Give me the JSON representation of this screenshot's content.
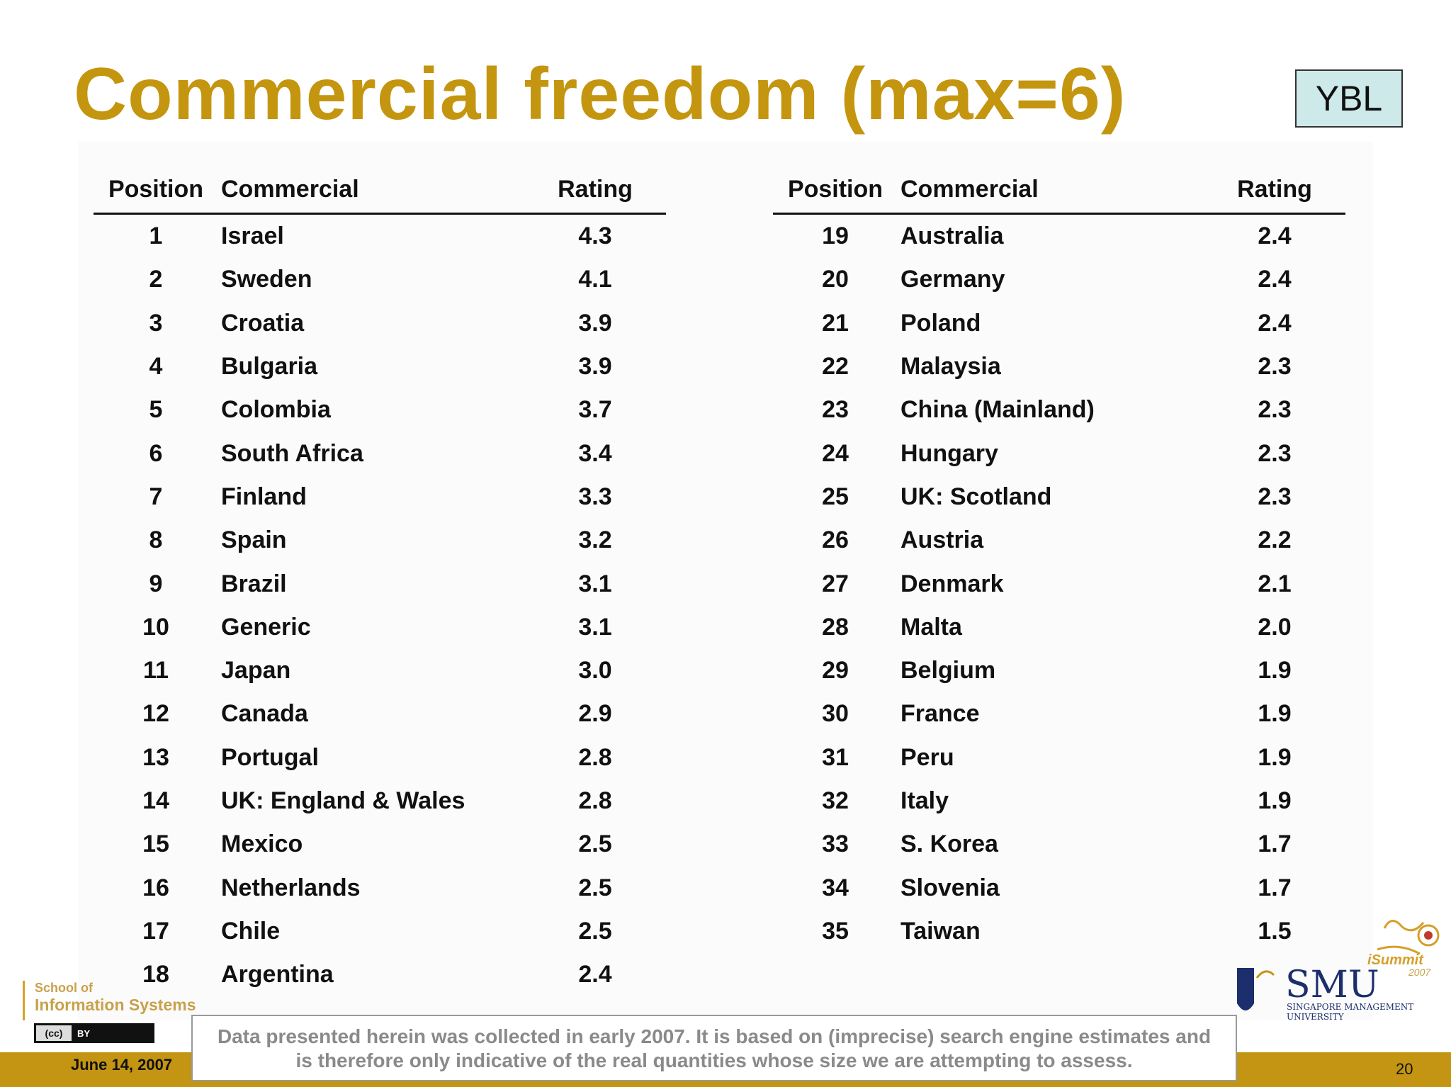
{
  "title": "Commercial freedom (max=6)",
  "badge": "YBL",
  "columns": {
    "position": "Position",
    "commercial": "Commercial",
    "rating": "Rating"
  },
  "left_rows": [
    {
      "pos": "1",
      "name": "Israel",
      "rating": "4.3"
    },
    {
      "pos": "2",
      "name": "Sweden",
      "rating": "4.1"
    },
    {
      "pos": "3",
      "name": "Croatia",
      "rating": "3.9"
    },
    {
      "pos": "4",
      "name": "Bulgaria",
      "rating": "3.9"
    },
    {
      "pos": "5",
      "name": "Colombia",
      "rating": "3.7"
    },
    {
      "pos": "6",
      "name": "South Africa",
      "rating": "3.4"
    },
    {
      "pos": "7",
      "name": "Finland",
      "rating": "3.3"
    },
    {
      "pos": "8",
      "name": "Spain",
      "rating": "3.2"
    },
    {
      "pos": "9",
      "name": "Brazil",
      "rating": "3.1"
    },
    {
      "pos": "10",
      "name": "Generic",
      "rating": "3.1"
    },
    {
      "pos": "11",
      "name": "Japan",
      "rating": "3.0"
    },
    {
      "pos": "12",
      "name": "Canada",
      "rating": "2.9"
    },
    {
      "pos": "13",
      "name": "Portugal",
      "rating": "2.8"
    },
    {
      "pos": "14",
      "name": "UK: England & Wales",
      "rating": "2.8"
    },
    {
      "pos": "15",
      "name": "Mexico",
      "rating": "2.5"
    },
    {
      "pos": "16",
      "name": "Netherlands",
      "rating": "2.5"
    },
    {
      "pos": "17",
      "name": "Chile",
      "rating": "2.5"
    },
    {
      "pos": "18",
      "name": "Argentina",
      "rating": "2.4"
    }
  ],
  "right_rows": [
    {
      "pos": "19",
      "name": "Australia",
      "rating": "2.4"
    },
    {
      "pos": "20",
      "name": "Germany",
      "rating": "2.4"
    },
    {
      "pos": "21",
      "name": "Poland",
      "rating": "2.4"
    },
    {
      "pos": "22",
      "name": "Malaysia",
      "rating": "2.3"
    },
    {
      "pos": "23",
      "name": "China (Mainland)",
      "rating": "2.3"
    },
    {
      "pos": "24",
      "name": "Hungary",
      "rating": "2.3"
    },
    {
      "pos": "25",
      "name": "UK: Scotland",
      "rating": "2.3"
    },
    {
      "pos": "26",
      "name": "Austria",
      "rating": "2.2"
    },
    {
      "pos": "27",
      "name": "Denmark",
      "rating": "2.1"
    },
    {
      "pos": "28",
      "name": "Malta",
      "rating": "2.0"
    },
    {
      "pos": "29",
      "name": "Belgium",
      "rating": "1.9"
    },
    {
      "pos": "30",
      "name": "France",
      "rating": "1.9"
    },
    {
      "pos": "31",
      "name": "Peru",
      "rating": "1.9"
    },
    {
      "pos": "32",
      "name": "Italy",
      "rating": "1.9"
    },
    {
      "pos": "33",
      "name": "S. Korea",
      "rating": "1.7"
    },
    {
      "pos": "34",
      "name": "Slovenia",
      "rating": "1.7"
    },
    {
      "pos": "35",
      "name": "Taiwan",
      "rating": "1.5"
    }
  ],
  "footer": {
    "date": "June 14, 2007",
    "page": "20",
    "disclaimer_line1": "Data presented herein was collected in early 2007. It is based on (imprecise) search engine estimates and",
    "disclaimer_line2": "is therefore only indicative of the real quantities whose size we are attempting to assess."
  },
  "logos": {
    "school_line1": "School of",
    "school_line2": "Information Systems",
    "cc_mark": "(cc)",
    "cc_by": "BY",
    "isummit": "iSummit",
    "isummit_year": "2007",
    "smu_name": "SMU",
    "smu_sub_line1": "SINGAPORE MANAGEMENT",
    "smu_sub_line2": "UNIVERSITY"
  },
  "colors": {
    "title": "#c4950f",
    "band": "#c49512",
    "badge_bg": "#cde9ea"
  }
}
